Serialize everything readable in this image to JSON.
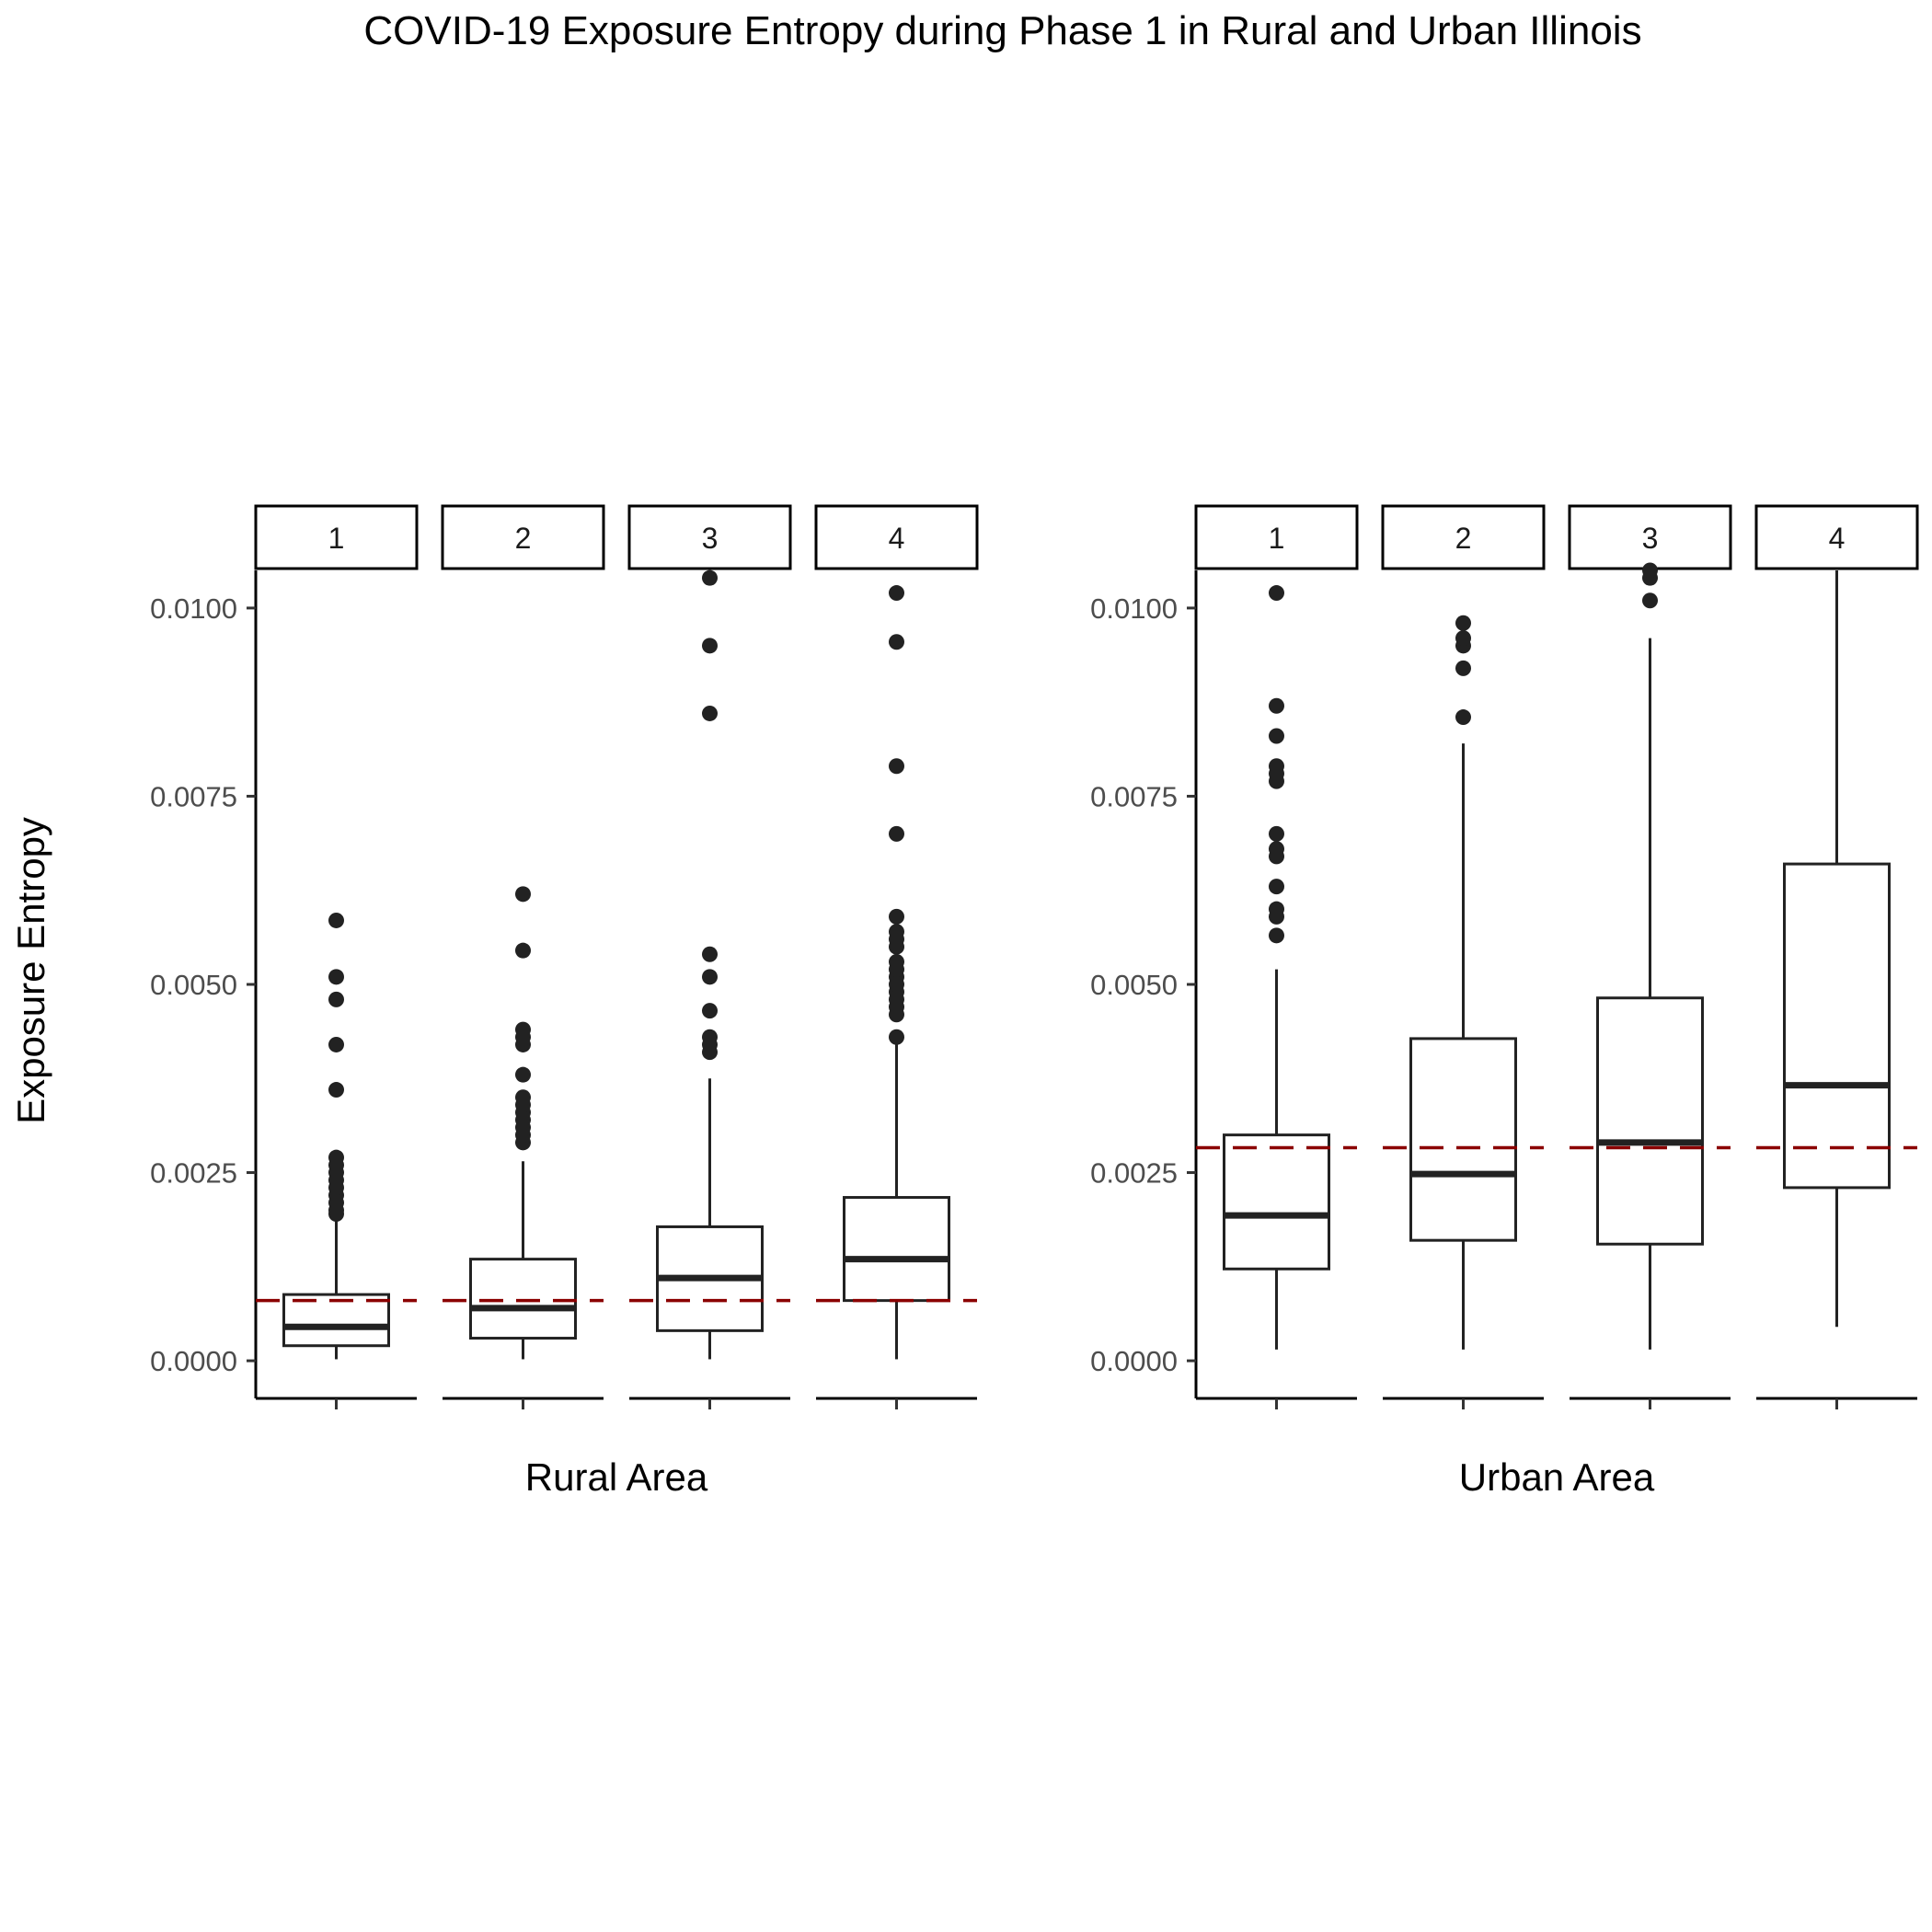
{
  "chart_data": {
    "type": "box",
    "title": "COVID-19 Exposure Entropy during Phase 1 in Rural and Urban Illinois",
    "ylabel": "Exposure Entropy",
    "ylim": [
      -0.0005,
      0.0105
    ],
    "yticks": [
      "0.0000",
      "0.0025",
      "0.0050",
      "0.0075",
      "0.0100"
    ],
    "yticks_values": [
      0,
      0.0025,
      0.005,
      0.0075,
      0.01
    ],
    "reference_line_color": "#8B0000",
    "box_color": "#222222",
    "panels": [
      {
        "xlabel": "Rural Area",
        "reference_line": 0.0008,
        "groups": [
          {
            "label": "1",
            "strip": "1",
            "whisker_low": 2e-05,
            "q1": 0.0002,
            "median": 0.00045,
            "q3": 0.00088,
            "whisker_high": 0.0019,
            "outliers": [
              0.00195,
              0.002,
              0.0021,
              0.0022,
              0.0023,
              0.0024,
              0.0025,
              0.0026,
              0.0027,
              0.0036,
              0.0042,
              0.0048,
              0.0051,
              0.00585
            ]
          },
          {
            "label": "2",
            "strip": "2",
            "whisker_low": 2e-05,
            "q1": 0.0003,
            "median": 0.0007,
            "q3": 0.00135,
            "whisker_high": 0.00265,
            "outliers": [
              0.0029,
              0.003,
              0.0031,
              0.0032,
              0.0033,
              0.0034,
              0.0035,
              0.0038,
              0.0042,
              0.0043,
              0.0044,
              0.00545,
              0.0062
            ]
          },
          {
            "label": "3",
            "strip": "3",
            "whisker_low": 2e-05,
            "q1": 0.0004,
            "median": 0.0011,
            "q3": 0.00178,
            "whisker_high": 0.00375,
            "outliers": [
              0.0041,
              0.0042,
              0.0043,
              0.00465,
              0.0051,
              0.0054,
              0.0086,
              0.0095,
              0.0104
            ]
          },
          {
            "label": "4",
            "strip": "4",
            "whisker_low": 2e-05,
            "q1": 0.0008,
            "median": 0.00135,
            "q3": 0.00217,
            "whisker_high": 0.0042,
            "outliers": [
              0.0043,
              0.0046,
              0.0047,
              0.0048,
              0.0049,
              0.005,
              0.0051,
              0.0052,
              0.0053,
              0.0055,
              0.0056,
              0.0057,
              0.0059,
              0.007,
              0.0079,
              0.00955,
              0.0102
            ]
          }
        ]
      },
      {
        "xlabel": "Urban Area",
        "reference_line": 0.00283,
        "groups": [
          {
            "label": "1",
            "strip": "1",
            "whisker_low": 0.00015,
            "q1": 0.00122,
            "median": 0.00193,
            "q3": 0.003,
            "whisker_high": 0.0052,
            "outliers": [
              0.00565,
              0.0059,
              0.006,
              0.0063,
              0.0067,
              0.0068,
              0.007,
              0.0077,
              0.0078,
              0.0079,
              0.0083,
              0.0087,
              0.0102
            ]
          },
          {
            "label": "2",
            "strip": "2",
            "whisker_low": 0.00015,
            "q1": 0.0016,
            "median": 0.00248,
            "q3": 0.00428,
            "whisker_high": 0.0082,
            "outliers": [
              0.00855,
              0.0092,
              0.0095,
              0.0096,
              0.0098
            ]
          },
          {
            "label": "3",
            "strip": "3",
            "whisker_low": 0.00015,
            "q1": 0.00155,
            "median": 0.0029,
            "q3": 0.00482,
            "whisker_high": 0.0096,
            "outliers": [
              0.0101,
              0.0104,
              0.0105
            ]
          },
          {
            "label": "4",
            "strip": "4",
            "whisker_low": 0.00045,
            "q1": 0.0023,
            "median": 0.00366,
            "q3": 0.0066,
            "whisker_high": 0.0105,
            "outliers": []
          }
        ]
      }
    ]
  }
}
